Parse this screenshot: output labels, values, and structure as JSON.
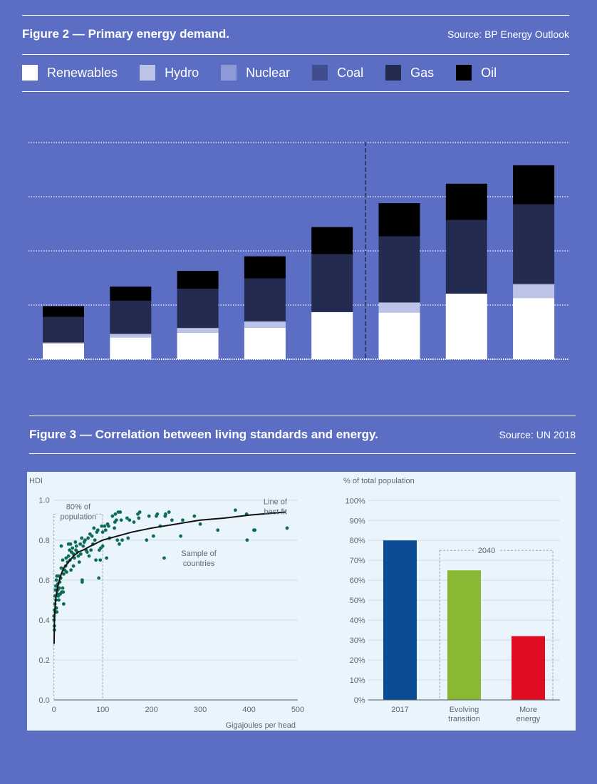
{
  "figure2": {
    "title": "Figure 2 — Primary energy demand.",
    "source": "Source: BP Energy Outlook",
    "chart_data": {
      "type": "stacked-bar",
      "title": "Primary energy demand.",
      "xlabel": "",
      "ylabel": "",
      "grid": true,
      "legend_placement": "top",
      "projection_divider_after_bar": 5,
      "series": [
        {
          "name": "Renewables",
          "color": "#ffffff",
          "values": [
            0.29,
            0.4,
            0.49,
            0.58,
            0.87,
            0.86,
            1.21,
            1.13
          ]
        },
        {
          "name": "Hydro",
          "color": "#bcc3e8",
          "values": [
            0,
            0.06,
            0.08,
            0.11,
            0,
            0.18,
            0,
            0.25
          ]
        },
        {
          "name": "Nuclear",
          "color": "#8e99d8",
          "values": [
            0.02,
            0.01,
            0.01,
            0.01,
            0,
            0.01,
            0,
            0.01
          ]
        },
        {
          "name": "Coal",
          "color": "#404d8f",
          "values": [
            0,
            0,
            0,
            0,
            0,
            0,
            0,
            0
          ]
        },
        {
          "name": "Gas",
          "color": "#232b50",
          "values": [
            0.47,
            0.61,
            0.72,
            0.79,
            1.07,
            1.22,
            1.36,
            1.47
          ]
        },
        {
          "name": "Oil",
          "color": "#000000",
          "values": [
            0.2,
            0.26,
            0.33,
            0.41,
            0.5,
            0.61,
            0.67,
            0.72
          ]
        }
      ],
      "ylim": [
        0,
        4
      ]
    }
  },
  "figure3": {
    "title": "Figure 3 — Correlation between living standards and energy.",
    "source": "Source: UN 2018",
    "footer_source": "Source: UN 2018",
    "chart_data": [
      {
        "type": "scatter",
        "ylabel": "HDI",
        "xlabel": "Gigajoules per head",
        "xlim": [
          0,
          500
        ],
        "ylim": [
          0,
          1.0
        ],
        "xticks": [
          "0",
          "100",
          "200",
          "300",
          "400",
          "500"
        ],
        "yticks": [
          "0.0",
          "0.2",
          "0.4",
          "0.6",
          "0.8",
          "1.0"
        ],
        "grid": true,
        "point_color": "#0e6b55",
        "annotations": {
          "population_box": "80% of population",
          "population_box_line1": "80% of",
          "population_box_line2": "population",
          "box_xmax": 100,
          "fit_label_1": "Line of",
          "fit_label_2": "best fit",
          "points_label_1": "Sample of",
          "points_label_2": "countries"
        },
        "best_fit": [
          [
            0.3,
            0.28
          ],
          [
            1,
            0.39
          ],
          [
            2,
            0.45
          ],
          [
            4,
            0.51
          ],
          [
            7,
            0.56
          ],
          [
            10,
            0.59
          ],
          [
            15,
            0.63
          ],
          [
            20,
            0.66
          ],
          [
            30,
            0.69
          ],
          [
            40,
            0.72
          ],
          [
            50,
            0.74
          ],
          [
            60,
            0.75
          ],
          [
            75,
            0.77
          ],
          [
            100,
            0.8
          ],
          [
            130,
            0.82
          ],
          [
            160,
            0.84
          ],
          [
            200,
            0.86
          ],
          [
            250,
            0.88
          ],
          [
            300,
            0.9
          ],
          [
            350,
            0.91
          ],
          [
            400,
            0.925
          ],
          [
            475,
            0.94
          ]
        ],
        "points": [
          [
            0,
            0.4
          ],
          [
            0,
            0.42
          ],
          [
            1,
            0.35
          ],
          [
            1,
            0.37
          ],
          [
            1,
            0.45
          ],
          [
            2,
            0.48
          ],
          [
            2,
            0.52
          ],
          [
            3,
            0.44
          ],
          [
            3,
            0.55
          ],
          [
            4,
            0.5
          ],
          [
            4,
            0.57
          ],
          [
            5,
            0.46
          ],
          [
            5,
            0.6
          ],
          [
            6,
            0.44
          ],
          [
            6,
            0.62
          ],
          [
            7,
            0.53
          ],
          [
            8,
            0.55
          ],
          [
            8,
            0.58
          ],
          [
            9,
            0.52
          ],
          [
            10,
            0.62
          ],
          [
            10,
            0.5
          ],
          [
            11,
            0.56
          ],
          [
            12,
            0.59
          ],
          [
            13,
            0.53
          ],
          [
            14,
            0.61
          ],
          [
            15,
            0.77
          ],
          [
            15,
            0.66
          ],
          [
            16,
            0.54
          ],
          [
            18,
            0.7
          ],
          [
            18,
            0.56
          ],
          [
            19,
            0.54
          ],
          [
            20,
            0.48
          ],
          [
            20,
            0.63
          ],
          [
            22,
            0.65
          ],
          [
            24,
            0.67
          ],
          [
            25,
            0.71
          ],
          [
            26,
            0.64
          ],
          [
            28,
            0.69
          ],
          [
            30,
            0.78
          ],
          [
            30,
            0.72
          ],
          [
            32,
            0.75
          ],
          [
            33,
            0.7
          ],
          [
            34,
            0.78
          ],
          [
            35,
            0.65
          ],
          [
            36,
            0.74
          ],
          [
            38,
            0.76
          ],
          [
            40,
            0.67
          ],
          [
            40,
            0.73
          ],
          [
            42,
            0.71
          ],
          [
            44,
            0.79
          ],
          [
            45,
            0.75
          ],
          [
            46,
            0.77
          ],
          [
            48,
            0.74
          ],
          [
            50,
            0.72
          ],
          [
            52,
            0.69
          ],
          [
            54,
            0.78
          ],
          [
            55,
            0.73
          ],
          [
            57,
            0.81
          ],
          [
            58,
            0.6
          ],
          [
            58,
            0.59
          ],
          [
            60,
            0.77
          ],
          [
            62,
            0.79
          ],
          [
            64,
            0.8
          ],
          [
            66,
            0.75
          ],
          [
            68,
            0.74
          ],
          [
            70,
            0.81
          ],
          [
            72,
            0.72
          ],
          [
            74,
            0.83
          ],
          [
            76,
            0.75
          ],
          [
            78,
            0.82
          ],
          [
            80,
            0.78
          ],
          [
            82,
            0.86
          ],
          [
            84,
            0.8
          ],
          [
            86,
            0.7
          ],
          [
            88,
            0.84
          ],
          [
            90,
            0.85
          ],
          [
            92,
            0.61
          ],
          [
            93,
            0.75
          ],
          [
            95,
            0.7
          ],
          [
            96,
            0.76
          ],
          [
            98,
            0.87
          ],
          [
            100,
            0.77
          ],
          [
            100,
            0.84
          ],
          [
            104,
            0.87
          ],
          [
            106,
            0.85
          ],
          [
            108,
            0.71
          ],
          [
            110,
            0.88
          ],
          [
            112,
            0.87
          ],
          [
            114,
            0.81
          ],
          [
            120,
            0.92
          ],
          [
            124,
            0.86
          ],
          [
            125,
            0.89
          ],
          [
            126,
            0.93
          ],
          [
            128,
            0.9
          ],
          [
            130,
            0.8
          ],
          [
            132,
            0.94
          ],
          [
            134,
            0.78
          ],
          [
            136,
            0.94
          ],
          [
            138,
            0.9
          ],
          [
            140,
            0.8
          ],
          [
            150,
            0.91
          ],
          [
            152,
            0.81
          ],
          [
            155,
            0.9
          ],
          [
            164,
            0.89
          ],
          [
            172,
            0.93
          ],
          [
            174,
            0.91
          ],
          [
            176,
            0.94
          ],
          [
            190,
            0.8
          ],
          [
            195,
            0.92
          ],
          [
            204,
            0.82
          ],
          [
            210,
            0.92
          ],
          [
            212,
            0.93
          ],
          [
            218,
            0.87
          ],
          [
            226,
            0.71
          ],
          [
            228,
            0.92
          ],
          [
            229,
            0.93
          ],
          [
            236,
            0.94
          ],
          [
            242,
            0.9
          ],
          [
            260,
            0.82
          ],
          [
            264,
            0.9
          ],
          [
            288,
            0.92
          ],
          [
            300,
            0.88
          ],
          [
            336,
            0.85
          ],
          [
            372,
            0.95
          ],
          [
            395,
            0.93
          ],
          [
            396,
            0.8
          ],
          [
            410,
            0.85
          ],
          [
            412,
            0.85
          ],
          [
            478,
            0.86
          ]
        ]
      },
      {
        "type": "bar",
        "ylabel": "% of total population",
        "categories": [
          "2017",
          "Evolving transition",
          "More energy"
        ],
        "category_lines": [
          [
            "2017"
          ],
          [
            "Evolving",
            "transition"
          ],
          [
            "More",
            "energy"
          ]
        ],
        "values": [
          80,
          65,
          32
        ],
        "colors": [
          "#0b4d94",
          "#8bb833",
          "#e00d22"
        ],
        "ylim": [
          0,
          100
        ],
        "yticks": [
          "0%",
          "10%",
          "20%",
          "30%",
          "40%",
          "50%",
          "60%",
          "70%",
          "80%",
          "90%",
          "100%"
        ],
        "grid": true,
        "group_label": "2040",
        "group_box_top": 75
      }
    ]
  }
}
